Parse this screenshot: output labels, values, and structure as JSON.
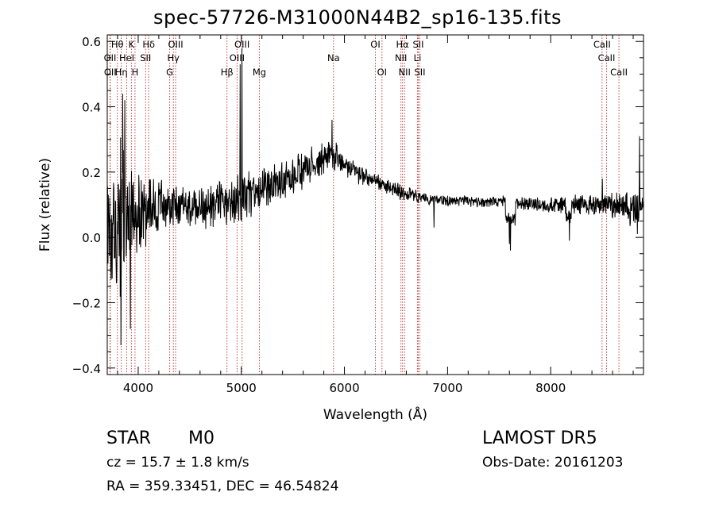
{
  "chart_data": {
    "type": "line",
    "title": "spec-57726-M31000N44B2_sp16-135.fits",
    "xlabel": "Wavelength (Å)",
    "ylabel": "Flux (relative)",
    "xlim": [
      3700,
      8900
    ],
    "ylim": [
      -0.42,
      0.62
    ],
    "xticks": [
      4000,
      5000,
      6000,
      7000,
      8000
    ],
    "yticks": [
      -0.4,
      -0.2,
      0.0,
      0.2,
      0.4,
      0.6
    ],
    "xtick_labels": [
      "4000",
      "5000",
      "6000",
      "7000",
      "8000"
    ],
    "ytick_labels": [
      "−0.4",
      "−0.2",
      "0.0",
      "0.2",
      "0.4",
      "0.6"
    ],
    "grid": false,
    "series_color": "#000000",
    "line_color": "#b22222",
    "spectrum_knots": [
      {
        "x": 3700,
        "y": 0.05,
        "noise": 0.12
      },
      {
        "x": 3800,
        "y": 0.06,
        "noise": 0.2
      },
      {
        "x": 3900,
        "y": 0.08,
        "noise": 0.16
      },
      {
        "x": 4000,
        "y": 0.08,
        "noise": 0.11
      },
      {
        "x": 4200,
        "y": 0.09,
        "noise": 0.07
      },
      {
        "x": 4500,
        "y": 0.09,
        "noise": 0.05
      },
      {
        "x": 4800,
        "y": 0.1,
        "noise": 0.06
      },
      {
        "x": 5000,
        "y": 0.12,
        "noise": 0.06
      },
      {
        "x": 5300,
        "y": 0.16,
        "noise": 0.06
      },
      {
        "x": 5600,
        "y": 0.2,
        "noise": 0.05
      },
      {
        "x": 5850,
        "y": 0.25,
        "noise": 0.04
      },
      {
        "x": 6000,
        "y": 0.22,
        "noise": 0.03
      },
      {
        "x": 6300,
        "y": 0.17,
        "noise": 0.02
      },
      {
        "x": 6600,
        "y": 0.13,
        "noise": 0.02
      },
      {
        "x": 7000,
        "y": 0.11,
        "noise": 0.015
      },
      {
        "x": 7500,
        "y": 0.11,
        "noise": 0.015
      },
      {
        "x": 8000,
        "y": 0.1,
        "noise": 0.02
      },
      {
        "x": 8500,
        "y": 0.1,
        "noise": 0.03
      },
      {
        "x": 8900,
        "y": 0.09,
        "noise": 0.05
      }
    ],
    "spectrum_features": [
      {
        "x": 3834,
        "y": -0.33
      },
      {
        "x": 3850,
        "y": 0.44
      },
      {
        "x": 3870,
        "y": 0.42
      },
      {
        "x": 3925,
        "y": -0.28
      },
      {
        "x": 4990,
        "y": 0.53
      },
      {
        "x": 5005,
        "y": 0.58
      },
      {
        "x": 5880,
        "y": 0.36
      },
      {
        "x": 5920,
        "y": 0.29
      },
      {
        "x": 6870,
        "y": 0.03
      },
      {
        "x": 7600,
        "y": 0.03
      },
      {
        "x": 7610,
        "y": 0.01
      },
      {
        "x": 8180,
        "y": 0.03
      },
      {
        "x": 8500,
        "y": 0.18
      },
      {
        "x": 8840,
        "y": 0.01
      },
      {
        "x": 8860,
        "y": 0.31
      },
      {
        "x": 8880,
        "y": 0.09
      }
    ],
    "lines": [
      {
        "label": "Hθ",
        "x": 3798,
        "row": 1
      },
      {
        "label": "Hη",
        "x": 3836,
        "row": 3
      },
      {
        "label": "K",
        "x": 3934,
        "row": 1
      },
      {
        "label": "H",
        "x": 3969,
        "row": 3
      },
      {
        "label": "Hδ",
        "x": 4102,
        "row": 1
      },
      {
        "label": "G",
        "x": 4305,
        "row": 3
      },
      {
        "label": "Hγ",
        "x": 4341,
        "row": 2
      },
      {
        "label": "Hβ",
        "x": 4861,
        "row": 3
      },
      {
        "label": "Mg",
        "x": 5175,
        "row": 3
      },
      {
        "label": "Na",
        "x": 5894,
        "row": 2
      },
      {
        "label": "Hα",
        "x": 6563,
        "row": 1
      },
      {
        "label": "OII",
        "x": 3727,
        "row": 2
      },
      {
        "label": "OII",
        "x": 3729,
        "row": 3
      },
      {
        "label": "HeI",
        "x": 3889,
        "row": 2
      },
      {
        "label": "SII",
        "x": 4072,
        "row": 2
      },
      {
        "label": "OIII",
        "x": 4363,
        "row": 1
      },
      {
        "label": "OIII",
        "x": 4959,
        "row": 2
      },
      {
        "label": "OIII",
        "x": 5007,
        "row": 1
      },
      {
        "label": "OI",
        "x": 6300,
        "row": 1
      },
      {
        "label": "OI",
        "x": 6364,
        "row": 3
      },
      {
        "label": "NII",
        "x": 6548,
        "row": 2
      },
      {
        "label": "NII",
        "x": 6583,
        "row": 3
      },
      {
        "label": "SII",
        "x": 6716,
        "row": 1
      },
      {
        "label": "Li",
        "x": 6708,
        "row": 2
      },
      {
        "label": "SII",
        "x": 6731,
        "row": 3
      },
      {
        "label": "CaII",
        "x": 8498,
        "row": 1
      },
      {
        "label": "CaII",
        "x": 8542,
        "row": 2
      },
      {
        "label": "CaII",
        "x": 8662,
        "row": 3
      }
    ]
  },
  "info": {
    "object_class": "STAR",
    "subclass": "M0",
    "survey": "LAMOST  DR5",
    "redshift": "cz = 15.7 ± 1.8 km/s",
    "obs_date": "Obs-Date: 20161203",
    "coords": "RA = 359.33451, DEC =  46.54824"
  }
}
